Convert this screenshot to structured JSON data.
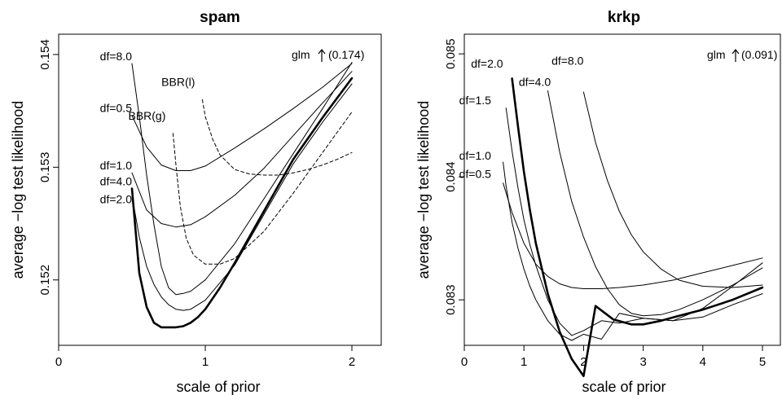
{
  "chart_data": [
    {
      "type": "line",
      "title": "spam",
      "xlabel": "scale of prior",
      "ylabel": "average −log test likelihood",
      "xlim": [
        0,
        2.2
      ],
      "ylim": [
        0.15142,
        0.15418
      ],
      "xticks": [
        "0",
        "1",
        "2"
      ],
      "yticks": [
        "0.152",
        "0.153",
        "0.154"
      ],
      "annotation": "glm",
      "annotation_value": "(0.174)",
      "series": [
        {
          "name": "df=8.0",
          "style": "solid",
          "weight": "thin",
          "label_at": [
            0.5,
            0.15395
          ],
          "x": [
            0.5,
            0.55,
            0.6,
            0.65,
            0.7,
            0.75,
            0.8,
            0.85,
            0.9,
            1.0,
            1.2,
            1.4,
            1.6,
            1.8,
            2.0
          ],
          "y": [
            0.15392,
            0.15345,
            0.15293,
            0.15249,
            0.15212,
            0.15193,
            0.15187,
            0.15188,
            0.1519,
            0.152,
            0.15232,
            0.15272,
            0.15312,
            0.15352,
            0.15393
          ]
        },
        {
          "name": "df=0.5",
          "style": "solid",
          "weight": "thin",
          "label_at": [
            0.5,
            0.15349
          ],
          "x": [
            0.5,
            0.6,
            0.7,
            0.8,
            0.9,
            1.0,
            1.2,
            1.4,
            1.6,
            1.8,
            2.0
          ],
          "y": [
            0.15346,
            0.15318,
            0.15302,
            0.15297,
            0.15297,
            0.15301,
            0.15317,
            0.15334,
            0.15352,
            0.15371,
            0.15392
          ]
        },
        {
          "name": "df=1.0",
          "style": "solid",
          "weight": "thin",
          "label_at": [
            0.5,
            0.15298
          ],
          "x": [
            0.5,
            0.6,
            0.7,
            0.8,
            0.9,
            1.0,
            1.2,
            1.4,
            1.6,
            1.8,
            2.0
          ],
          "y": [
            0.15295,
            0.15262,
            0.1525,
            0.15247,
            0.15249,
            0.15256,
            0.15275,
            0.15299,
            0.15328,
            0.15357,
            0.15385
          ]
        },
        {
          "name": "df=4.0",
          "style": "solid",
          "weight": "thin",
          "label_at": [
            0.5,
            0.15284
          ],
          "x": [
            0.5,
            0.55,
            0.6,
            0.65,
            0.7,
            0.75,
            0.8,
            0.85,
            0.9,
            1.0,
            1.2,
            1.4,
            1.6,
            1.8,
            2.0
          ],
          "y": [
            0.15275,
            0.15238,
            0.15212,
            0.15196,
            0.15185,
            0.15178,
            0.15174,
            0.15173,
            0.15174,
            0.15182,
            0.15213,
            0.15258,
            0.15303,
            0.1534,
            0.15374
          ]
        },
        {
          "name": "df=2.0",
          "style": "solid",
          "weight": "bold",
          "label_at": [
            0.5,
            0.15268
          ],
          "x": [
            0.5,
            0.55,
            0.6,
            0.65,
            0.7,
            0.75,
            0.8,
            0.85,
            0.9,
            0.95,
            1.0,
            1.1,
            1.2,
            1.4,
            1.6,
            1.8,
            2.0
          ],
          "y": [
            0.15281,
            0.15206,
            0.15176,
            0.15162,
            0.15158,
            0.15158,
            0.15158,
            0.15159,
            0.15162,
            0.15167,
            0.15174,
            0.15193,
            0.15215,
            0.15261,
            0.15307,
            0.15344,
            0.15379
          ]
        },
        {
          "name": "BBR(g)",
          "style": "dashed",
          "weight": "thin",
          "label_at": [
            0.73,
            0.15342
          ],
          "x": [
            0.78,
            0.8,
            0.83,
            0.87,
            0.92,
            1.0,
            1.1,
            1.2,
            1.4,
            1.6,
            1.8,
            2.0
          ],
          "y": [
            0.1533,
            0.15302,
            0.15265,
            0.15237,
            0.15222,
            0.15214,
            0.15214,
            0.15219,
            0.15243,
            0.15277,
            0.15313,
            0.15349
          ]
        },
        {
          "name": "BBR(l)",
          "style": "dashed",
          "weight": "thin",
          "label_at": [
            0.93,
            0.15372
          ],
          "x": [
            0.98,
            1.0,
            1.05,
            1.1,
            1.2,
            1.3,
            1.4,
            1.5,
            1.6,
            1.7,
            1.8,
            1.9,
            2.0
          ],
          "y": [
            0.1536,
            0.15345,
            0.15325,
            0.15311,
            0.15298,
            0.15294,
            0.15293,
            0.15293,
            0.15295,
            0.15298,
            0.15302,
            0.15307,
            0.15313
          ]
        }
      ]
    },
    {
      "type": "line",
      "title": "krkp",
      "xlabel": "scale of prior",
      "ylabel": "average −log test likelihood",
      "xlim": [
        0,
        5.3
      ],
      "ylim": [
        0.08263,
        0.08516
      ],
      "xticks": [
        "0",
        "1",
        "2",
        "3",
        "4",
        "5"
      ],
      "yticks": [
        "0.083",
        "0.084",
        "0.085"
      ],
      "annotation": "glm",
      "annotation_value": "(0.091)",
      "series": [
        {
          "name": "df=2.0",
          "style": "solid",
          "weight": "bold",
          "label_at": [
            0.65,
            0.08489
          ],
          "x": [
            0.8,
            0.9,
            1.0,
            1.1,
            1.2,
            1.4,
            1.6,
            1.8,
            2.0,
            2.2,
            2.5,
            2.8,
            3.0,
            3.3,
            3.6,
            4.0,
            4.5,
            5.0
          ],
          "y": [
            0.0848,
            0.08441,
            0.08404,
            0.08373,
            0.08346,
            0.08305,
            0.08274,
            0.08252,
            0.08238,
            0.08295,
            0.08284,
            0.0828,
            0.0828,
            0.08283,
            0.08287,
            0.08292,
            0.083,
            0.0831
          ]
        },
        {
          "name": "df=8.0",
          "style": "solid",
          "weight": "thin",
          "label_at": [
            2.0,
            0.08491
          ],
          "x": [
            2.0,
            2.2,
            2.4,
            2.6,
            2.8,
            3.0,
            3.3,
            3.6,
            4.0,
            4.5,
            5.0
          ],
          "y": [
            0.08469,
            0.08428,
            0.08397,
            0.08372,
            0.08353,
            0.08339,
            0.08325,
            0.08316,
            0.08311,
            0.0831,
            0.08312
          ]
        },
        {
          "name": "df=4.0",
          "style": "solid",
          "weight": "thin",
          "label_at": [
            1.45,
            0.08474
          ],
          "x": [
            1.4,
            1.6,
            1.8,
            2.0,
            2.2,
            2.4,
            2.6,
            2.8,
            3.0,
            3.3,
            3.6,
            4.0,
            4.5,
            5.0
          ],
          "y": [
            0.0847,
            0.0842,
            0.0838,
            0.08351,
            0.08327,
            0.08309,
            0.08296,
            0.08289,
            0.08287,
            0.08288,
            0.08292,
            0.083,
            0.08312,
            0.08326
          ]
        },
        {
          "name": "df=1.5",
          "style": "solid",
          "weight": "thin",
          "label_at": [
            0.45,
            0.08459
          ],
          "x": [
            0.7,
            0.8,
            0.9,
            1.0,
            1.1,
            1.2,
            1.4,
            1.6,
            1.8,
            2.0,
            2.3,
            2.6,
            3.0,
            3.5,
            4.0,
            4.5,
            5.0
          ],
          "y": [
            0.08456,
            0.08421,
            0.08391,
            0.08365,
            0.08345,
            0.08328,
            0.083,
            0.08281,
            0.08271,
            0.08275,
            0.08283,
            0.08281,
            0.08285,
            0.08283,
            0.08286,
            0.08296,
            0.08305
          ]
        },
        {
          "name": "df=1.0",
          "style": "solid",
          "weight": "thin",
          "label_at": [
            0.45,
            0.08414
          ],
          "x": [
            0.65,
            0.7,
            0.8,
            0.9,
            1.0,
            1.1,
            1.2,
            1.4,
            1.6,
            1.8,
            2.0,
            2.3,
            2.6,
            3.0,
            3.5,
            4.0,
            4.5,
            5.0
          ],
          "y": [
            0.08412,
            0.08393,
            0.08363,
            0.08342,
            0.08325,
            0.08311,
            0.083,
            0.08283,
            0.08272,
            0.08267,
            0.08272,
            0.08268,
            0.08289,
            0.08285,
            0.08283,
            0.08293,
            0.08311,
            0.0833
          ]
        },
        {
          "name": "df=0.5",
          "style": "solid",
          "weight": "thin",
          "label_at": [
            0.45,
            0.08399
          ],
          "x": [
            0.65,
            0.8,
            1.0,
            1.2,
            1.4,
            1.6,
            1.8,
            2.0,
            2.3,
            2.6,
            3.0,
            3.5,
            4.0,
            4.5,
            5.0
          ],
          "y": [
            0.08395,
            0.08371,
            0.08346,
            0.08329,
            0.08319,
            0.08313,
            0.0831,
            0.08309,
            0.08309,
            0.0831,
            0.08312,
            0.08316,
            0.08322,
            0.08328,
            0.08334
          ]
        }
      ]
    }
  ]
}
